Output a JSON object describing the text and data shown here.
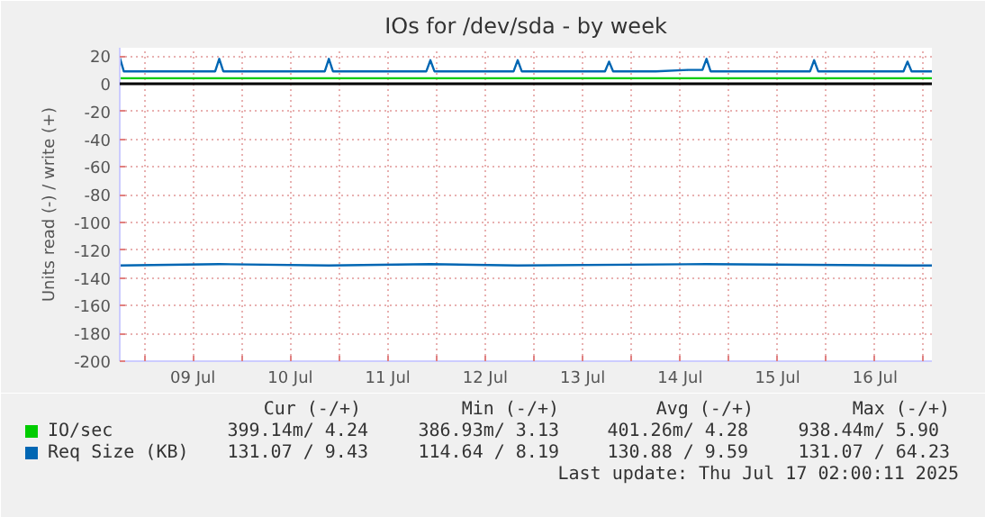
{
  "chart_data": {
    "type": "line",
    "title": "IOs for /dev/sda - by week",
    "ylabel": "Units read (-) / write (+)",
    "xlim": [
      "2025-07-08T18:00",
      "2025-07-17T02:00"
    ],
    "ylim": [
      -200,
      26
    ],
    "xticks": [
      {
        "value": "2025-07-09T00:00",
        "label": null
      },
      {
        "value": "2025-07-09T12:00",
        "label": "09 Jul"
      },
      {
        "value": "2025-07-10T00:00",
        "label": null
      },
      {
        "value": "2025-07-10T12:00",
        "label": "10 Jul"
      },
      {
        "value": "2025-07-11T00:00",
        "label": null
      },
      {
        "value": "2025-07-11T12:00",
        "label": "11 Jul"
      },
      {
        "value": "2025-07-12T00:00",
        "label": null
      },
      {
        "value": "2025-07-12T12:00",
        "label": "12 Jul"
      },
      {
        "value": "2025-07-13T00:00",
        "label": null
      },
      {
        "value": "2025-07-13T12:00",
        "label": "13 Jul"
      },
      {
        "value": "2025-07-14T00:00",
        "label": null
      },
      {
        "value": "2025-07-14T12:00",
        "label": "14 Jul"
      },
      {
        "value": "2025-07-15T00:00",
        "label": null
      },
      {
        "value": "2025-07-15T12:00",
        "label": "15 Jul"
      },
      {
        "value": "2025-07-16T00:00",
        "label": null
      },
      {
        "value": "2025-07-16T12:00",
        "label": "16 Jul"
      },
      {
        "value": "2025-07-17T00:00",
        "label": null
      }
    ],
    "yticks": [
      -200,
      -180,
      -160,
      -140,
      -120,
      -100,
      -80,
      -60,
      -40,
      -20,
      0,
      20
    ],
    "grid": true,
    "legend": "bottom",
    "ref_lines": [
      {
        "axis": "y",
        "value": 0,
        "color": "#000000"
      }
    ],
    "series": [
      {
        "name": "IO/sec",
        "color": "#00cc00",
        "x": [
          "2025-07-08T18:00",
          "2025-07-09T12:00",
          "2025-07-10T06:00",
          "2025-07-10T18:00",
          "2025-07-11T12:00",
          "2025-07-12T06:00",
          "2025-07-12T18:00",
          "2025-07-13T12:00",
          "2025-07-14T06:00",
          "2025-07-14T18:00",
          "2025-07-15T12:00",
          "2025-07-16T06:00",
          "2025-07-16T18:00",
          "2025-07-17T02:00"
        ],
        "values": [
          4,
          4,
          4,
          4,
          4,
          4,
          4,
          4,
          4,
          4,
          4,
          4,
          4,
          4
        ]
      },
      {
        "name": null,
        "color": "#0066b3",
        "x": [
          "2025-07-08T18:00",
          "2025-07-09T18:30",
          "2025-07-10T21:30",
          "2025-07-11T22:30",
          "2025-07-12T20:00",
          "2025-07-14T18:30",
          "2025-07-16T20:00",
          "2025-07-17T02:00"
        ],
        "values": [
          -131,
          -130,
          -131,
          -130,
          -131,
          -130,
          -131,
          -131
        ]
      },
      {
        "name": "Req Size (KB)",
        "color": "#0066b3",
        "x": [
          "2025-07-08T18:00",
          "2025-07-08T19:00",
          "2025-07-09T06:00",
          "2025-07-09T17:30",
          "2025-07-09T18:30",
          "2025-07-09T19:30",
          "2025-07-10T06:00",
          "2025-07-10T12:00",
          "2025-07-10T20:30",
          "2025-07-10T21:30",
          "2025-07-10T22:30",
          "2025-07-11T06:00",
          "2025-07-11T12:00",
          "2025-07-11T21:30",
          "2025-07-11T22:30",
          "2025-07-11T23:30",
          "2025-07-12T08:00",
          "2025-07-12T19:00",
          "2025-07-12T20:00",
          "2025-07-12T21:00",
          "2025-07-13T06:00",
          "2025-07-13T17:30",
          "2025-07-13T18:30",
          "2025-07-13T19:30",
          "2025-07-14T06:00",
          "2025-07-14T14:00",
          "2025-07-14T17:30",
          "2025-07-14T18:30",
          "2025-07-14T19:30",
          "2025-07-15T06:00",
          "2025-07-15T20:00",
          "2025-07-15T21:00",
          "2025-07-15T22:00",
          "2025-07-16T06:00",
          "2025-07-16T19:00",
          "2025-07-16T20:00",
          "2025-07-16T21:00",
          "2025-07-17T02:00"
        ],
        "values": [
          19,
          9,
          9,
          9,
          18,
          9,
          9,
          9,
          9,
          18,
          9,
          9,
          9,
          9,
          17,
          9,
          9,
          9,
          17,
          9,
          9,
          9,
          16,
          9,
          9,
          10,
          10,
          18,
          9,
          9,
          9,
          17,
          9,
          9,
          9,
          16,
          9,
          9
        ]
      }
    ],
    "annotations": [
      "Cur (-/+)",
      "Min (-/+)",
      "Avg (-/+)",
      "Max (-/+)",
      "399.14m/  4.24",
      "386.93m/  3.13",
      "401.26m/  4.28",
      "938.44m/  5.90",
      "131.07 /  9.43",
      "114.64 /  8.19",
      "130.88 /  9.59",
      "131.07 / 64.23",
      "Last update: Thu Jul 17 02:00:11 2025"
    ]
  }
}
